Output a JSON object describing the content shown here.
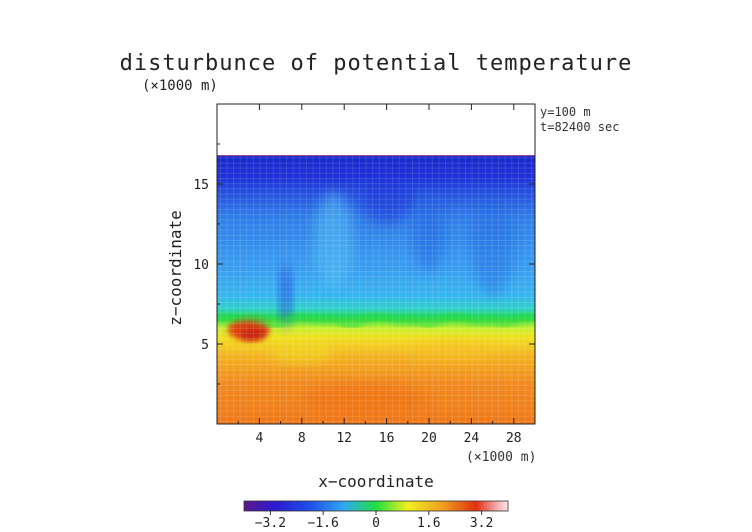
{
  "chart_data": {
    "type": "heatmap",
    "title": "disturbunce of potential temperature",
    "z_unit": "(×1000 m)",
    "x_unit": "(×1000 m)",
    "xlabel": "x−coordinate",
    "ylabel": "z−coordinate",
    "annotations": [
      "y=100 m",
      "t=82400 sec"
    ],
    "x_range": [
      0,
      30
    ],
    "z_range": [
      0,
      20
    ],
    "x_ticks": [
      4,
      8,
      12,
      16,
      20,
      24,
      28
    ],
    "x_tick_labels": [
      "4",
      "8",
      "12",
      "16",
      "20",
      "24",
      "28"
    ],
    "z_ticks": [
      5,
      10,
      15
    ],
    "z_tick_labels": [
      "5",
      "10",
      "15"
    ],
    "domain_top_z": 16.8,
    "colorbar": {
      "min": -4.0,
      "max": 4.0,
      "ticks": [
        -3.2,
        -1.6,
        0,
        1.6,
        3.2
      ],
      "tick_labels": [
        "−3.2",
        "−1.6",
        "0",
        "1.6",
        "3.2"
      ]
    },
    "colors": {
      "deep_blue": "#1e30d8",
      "light_blue": "#3aa0f0",
      "green": "#20d840",
      "yellow": "#f0e020",
      "orange": "#f08a20",
      "red": "#e03010"
    }
  }
}
